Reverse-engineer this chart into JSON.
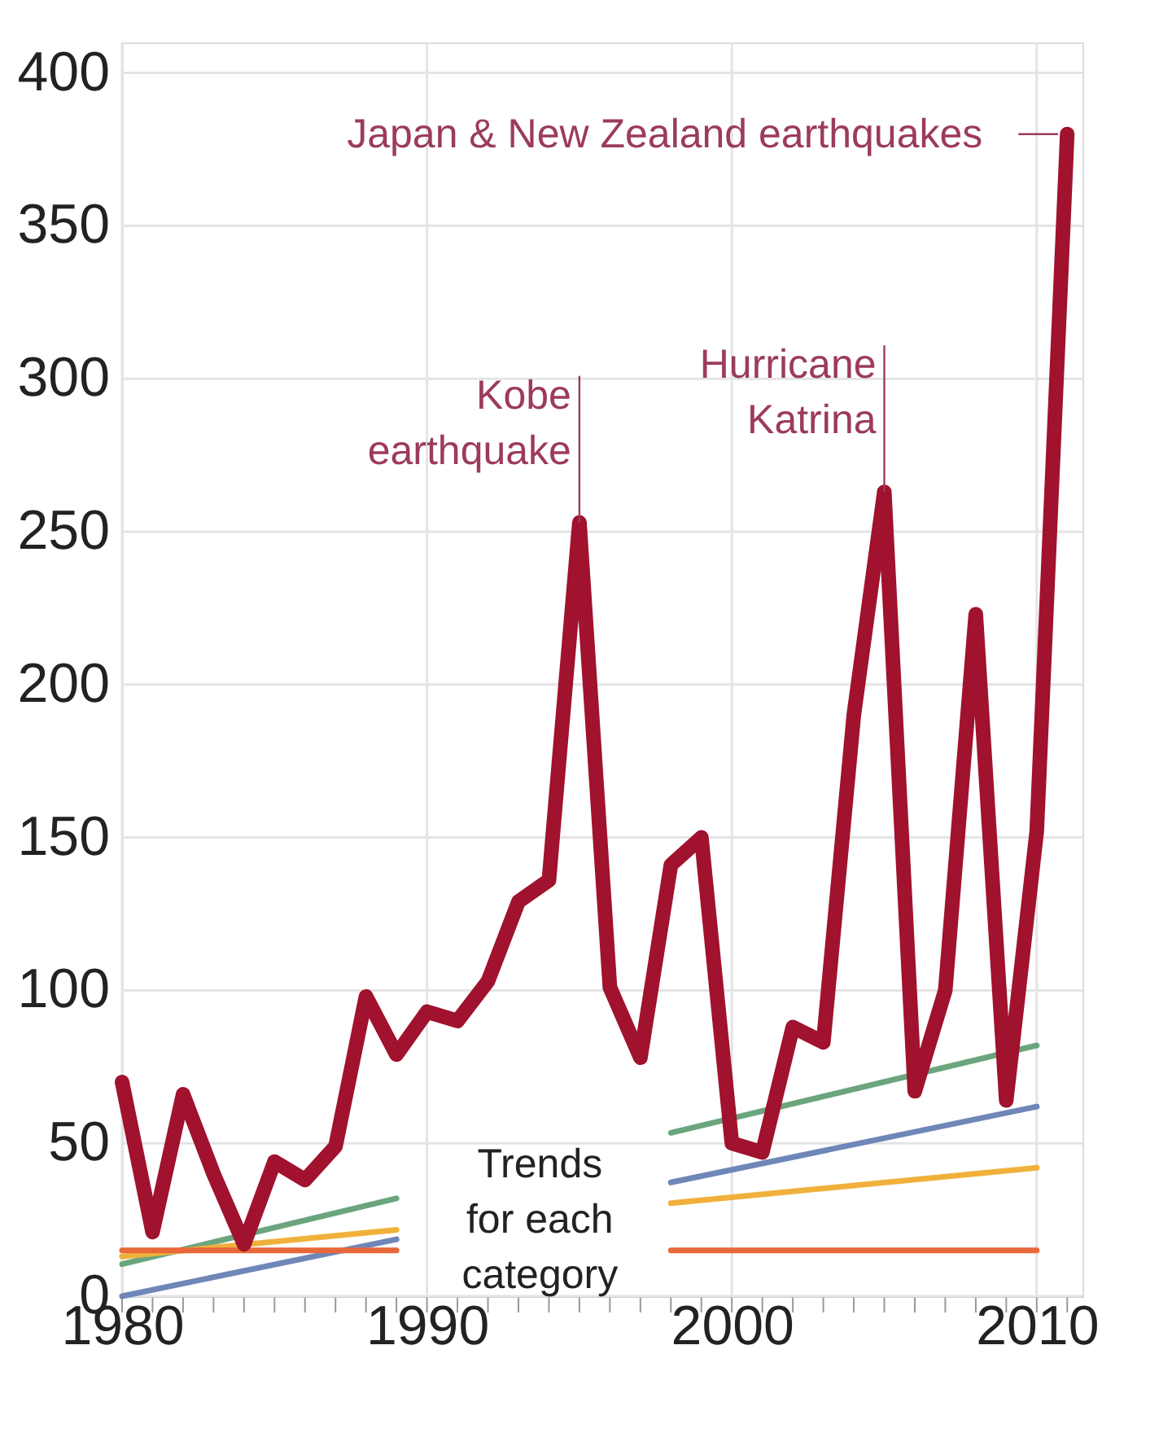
{
  "chart_data": {
    "type": "line",
    "xlim": [
      1980,
      2011.5
    ],
    "xticks": [
      1980,
      {
        "value": 1981,
        "label": null
      },
      {
        "value": 1982,
        "label": null
      },
      {
        "value": 1983,
        "label": null
      },
      {
        "value": 1984,
        "label": null
      },
      {
        "value": 1985,
        "label": null
      },
      {
        "value": 1986,
        "label": null
      },
      {
        "value": 1987,
        "label": null
      },
      {
        "value": 1988,
        "label": null
      },
      {
        "value": 1989,
        "label": null
      },
      1990,
      {
        "value": 1991,
        "label": null
      },
      {
        "value": 1992,
        "label": null
      },
      {
        "value": 1993,
        "label": null
      },
      {
        "value": 1994,
        "label": null
      },
      {
        "value": 1995,
        "label": null
      },
      {
        "value": 1996,
        "label": null
      },
      {
        "value": 1997,
        "label": null
      },
      {
        "value": 1998,
        "label": null
      },
      {
        "value": 1999,
        "label": null
      },
      2000,
      {
        "value": 2001,
        "label": null
      },
      {
        "value": 2002,
        "label": null
      },
      {
        "value": 2003,
        "label": null
      },
      {
        "value": 2004,
        "label": null
      },
      {
        "value": 2005,
        "label": null
      },
      {
        "value": 2006,
        "label": null
      },
      {
        "value": 2007,
        "label": null
      },
      {
        "value": 2008,
        "label": null
      },
      {
        "value": 2009,
        "label": null
      },
      2010,
      {
        "value": 2011,
        "label": null
      }
    ],
    "ylim": [
      0,
      410
    ],
    "yticks": [
      0,
      50,
      100,
      150,
      200,
      250,
      300,
      350,
      400
    ],
    "grid": true,
    "legend": false,
    "marker": "none",
    "line_style": "solid",
    "series": [
      {
        "color": "#6aa57e",
        "x": [
          1980,
          1989,
          1994,
          1998,
          2010
        ],
        "values": [
          10.5,
          32,
          null,
          53.4,
          82
        ]
      },
      {
        "color": "#6f86b8",
        "x": [
          1980,
          1989,
          1994,
          1998,
          2010
        ],
        "values": [
          0,
          18.6,
          null,
          37.2,
          62
        ]
      },
      {
        "color": "#f0b13c",
        "x": [
          1980,
          1989,
          1994,
          1998,
          2010
        ],
        "values": [
          13,
          21.7,
          null,
          30.4,
          42
        ]
      },
      {
        "color": "#e8683a",
        "x": [
          1980,
          1989,
          1994,
          1998,
          2010
        ],
        "values": [
          15,
          15,
          null,
          15,
          15
        ]
      },
      {
        "color": "#a0122e",
        "x": [
          1980,
          1981,
          1982,
          1983,
          1984,
          1985,
          1986,
          1987,
          1988,
          1989,
          1990,
          1991,
          1992,
          1993,
          1994,
          1995,
          1996,
          1997,
          1998,
          1999,
          2000,
          2001,
          2002,
          2003,
          2004,
          2005,
          2006,
          2007,
          2008,
          2009,
          2010,
          2011
        ],
        "values": [
          70,
          21,
          66,
          40,
          17,
          44,
          38,
          49,
          98,
          79,
          93,
          90,
          103,
          129,
          136,
          253,
          101,
          78,
          141,
          150,
          50,
          47,
          88,
          83,
          190,
          263,
          67,
          100,
          223,
          64,
          152,
          380
        ]
      }
    ],
    "annotations": [
      {
        "text": "Japan & New Zealand earthquakes",
        "x": 2011,
        "y": 380
      },
      {
        "text": "Kobe\nearthquake",
        "x": 1995,
        "y": 253
      },
      {
        "text": "Hurricane\nKatrina",
        "x": 2005,
        "y": 263
      },
      "Trends\nfor each\ncategory"
    ]
  }
}
